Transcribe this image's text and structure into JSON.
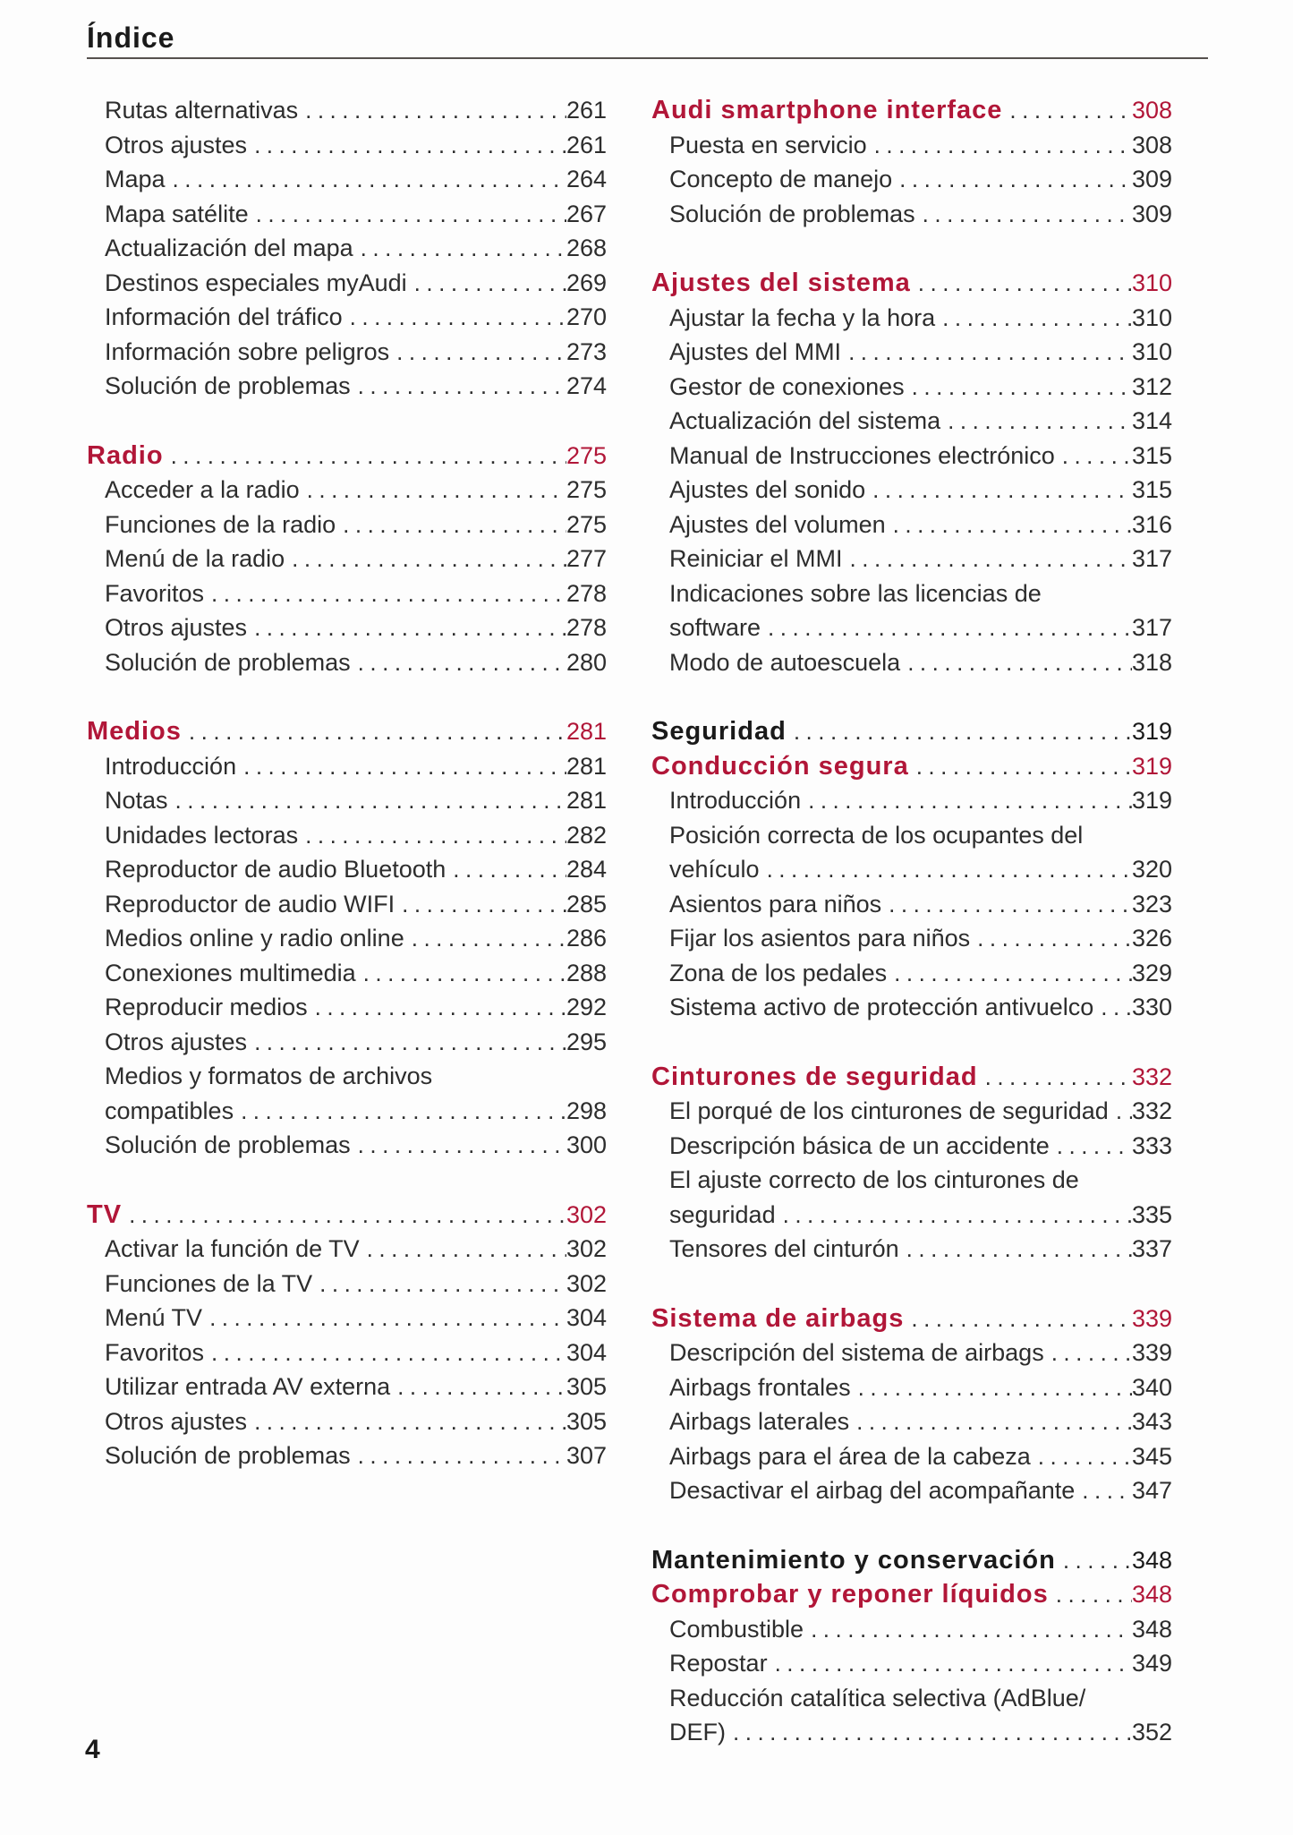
{
  "page": {
    "title": "Índice",
    "footer_page_number": "4"
  },
  "colors": {
    "accent": "#b11638",
    "text": "#2d2d2d",
    "heading": "#1a1a1a",
    "rule": "#56514e"
  },
  "toc": {
    "columns": [
      {
        "groups": [
          {
            "rows": [
              {
                "label": "Rutas alternativas",
                "page": "261",
                "style": "item"
              },
              {
                "label": "Otros ajustes",
                "page": "261",
                "style": "item"
              },
              {
                "label": "Mapa",
                "page": "264",
                "style": "item"
              },
              {
                "label": "Mapa satélite",
                "page": "267",
                "style": "item"
              },
              {
                "label": "Actualización del mapa",
                "page": "268",
                "style": "item"
              },
              {
                "label": "Destinos especiales myAudi",
                "page": "269",
                "style": "item"
              },
              {
                "label": "Información del tráfico",
                "page": "270",
                "style": "item"
              },
              {
                "label": "Información sobre peligros",
                "page": "273",
                "style": "item"
              },
              {
                "label": "Solución de problemas",
                "page": "274",
                "style": "item"
              }
            ]
          },
          {
            "rows": [
              {
                "label": "Radio",
                "page": "275",
                "style": "h-red"
              },
              {
                "label": "Acceder a la radio",
                "page": "275",
                "style": "item"
              },
              {
                "label": "Funciones de la radio",
                "page": "275",
                "style": "item"
              },
              {
                "label": "Menú de la radio",
                "page": "277",
                "style": "item"
              },
              {
                "label": "Favoritos",
                "page": "278",
                "style": "item"
              },
              {
                "label": "Otros ajustes",
                "page": "278",
                "style": "item"
              },
              {
                "label": "Solución de problemas",
                "page": "280",
                "style": "item"
              }
            ]
          },
          {
            "rows": [
              {
                "label": "Medios",
                "page": "281",
                "style": "h-red"
              },
              {
                "label": "Introducción",
                "page": "281",
                "style": "item"
              },
              {
                "label": "Notas",
                "page": "281",
                "style": "item"
              },
              {
                "label": "Unidades lectoras",
                "page": "282",
                "style": "item"
              },
              {
                "label": "Reproductor de audio Bluetooth",
                "page": "284",
                "style": "item"
              },
              {
                "label": "Reproductor de audio WIFI",
                "page": "285",
                "style": "item"
              },
              {
                "label": "Medios online y radio online",
                "page": "286",
                "style": "item"
              },
              {
                "label": "Conexiones multimedia",
                "page": "288",
                "style": "item"
              },
              {
                "label": "Reproducir medios",
                "page": "292",
                "style": "item"
              },
              {
                "label": "Otros ajustes",
                "page": "295",
                "style": "item"
              },
              {
                "label": "Medios y formatos de archivos",
                "page": "",
                "style": "cont"
              },
              {
                "label": "compatibles",
                "page": "298",
                "style": "item"
              },
              {
                "label": "Solución de problemas",
                "page": "300",
                "style": "item"
              }
            ]
          },
          {
            "rows": [
              {
                "label": "TV",
                "page": "302",
                "style": "h-red"
              },
              {
                "label": "Activar la función de TV",
                "page": "302",
                "style": "item"
              },
              {
                "label": "Funciones de la TV",
                "page": "302",
                "style": "item"
              },
              {
                "label": "Menú TV",
                "page": "304",
                "style": "item"
              },
              {
                "label": "Favoritos",
                "page": "304",
                "style": "item"
              },
              {
                "label": "Utilizar entrada AV externa",
                "page": "305",
                "style": "item"
              },
              {
                "label": "Otros ajustes",
                "page": "305",
                "style": "item"
              },
              {
                "label": "Solución de problemas",
                "page": "307",
                "style": "item"
              }
            ]
          }
        ]
      },
      {
        "groups": [
          {
            "rows": [
              {
                "label": "Audi smartphone interface",
                "page": "308",
                "style": "h-red"
              },
              {
                "label": "Puesta en servicio",
                "page": "308",
                "style": "item"
              },
              {
                "label": "Concepto de manejo",
                "page": "309",
                "style": "item"
              },
              {
                "label": "Solución de problemas",
                "page": "309",
                "style": "item"
              }
            ]
          },
          {
            "rows": [
              {
                "label": "Ajustes del sistema",
                "page": "310",
                "style": "h-red"
              },
              {
                "label": "Ajustar la fecha y la hora",
                "page": "310",
                "style": "item"
              },
              {
                "label": "Ajustes del MMI",
                "page": "310",
                "style": "item"
              },
              {
                "label": "Gestor de conexiones",
                "page": "312",
                "style": "item"
              },
              {
                "label": "Actualización del sistema",
                "page": "314",
                "style": "item"
              },
              {
                "label": "Manual de Instrucciones electrónico",
                "page": "315",
                "style": "item"
              },
              {
                "label": "Ajustes del sonido",
                "page": "315",
                "style": "item"
              },
              {
                "label": "Ajustes del volumen",
                "page": "316",
                "style": "item"
              },
              {
                "label": "Reiniciar el MMI",
                "page": "317",
                "style": "item"
              },
              {
                "label": "Indicaciones sobre las licencias de",
                "page": "",
                "style": "cont"
              },
              {
                "label": "software",
                "page": "317",
                "style": "item"
              },
              {
                "label": "Modo de autoescuela",
                "page": "318",
                "style": "item"
              }
            ]
          },
          {
            "rows": [
              {
                "label": "Seguridad",
                "page": "319",
                "style": "h-black"
              },
              {
                "label": "Conducción segura",
                "page": "319",
                "style": "h-red"
              },
              {
                "label": "Introducción",
                "page": "319",
                "style": "item"
              },
              {
                "label": "Posición correcta de los ocupantes del",
                "page": "",
                "style": "cont"
              },
              {
                "label": "vehículo",
                "page": "320",
                "style": "item"
              },
              {
                "label": "Asientos para niños",
                "page": "323",
                "style": "item"
              },
              {
                "label": "Fijar los asientos para niños",
                "page": "326",
                "style": "item"
              },
              {
                "label": "Zona de los pedales",
                "page": "329",
                "style": "item"
              },
              {
                "label": "Sistema activo de protección antivuelco",
                "page": "330",
                "style": "item"
              }
            ]
          },
          {
            "rows": [
              {
                "label": "Cinturones de seguridad",
                "page": "332",
                "style": "h-red"
              },
              {
                "label": "El porqué de los cinturones de seguridad",
                "page": "332",
                "style": "item"
              },
              {
                "label": "Descripción básica de un accidente",
                "page": "333",
                "style": "item"
              },
              {
                "label": "El ajuste correcto de los cinturones de",
                "page": "",
                "style": "cont"
              },
              {
                "label": "seguridad",
                "page": "335",
                "style": "item"
              },
              {
                "label": "Tensores del cinturón",
                "page": "337",
                "style": "item"
              }
            ]
          },
          {
            "rows": [
              {
                "label": "Sistema de airbags",
                "page": "339",
                "style": "h-red"
              },
              {
                "label": "Descripción del sistema de airbags",
                "page": "339",
                "style": "item"
              },
              {
                "label": "Airbags frontales",
                "page": "340",
                "style": "item"
              },
              {
                "label": "Airbags laterales",
                "page": "343",
                "style": "item"
              },
              {
                "label": "Airbags para el área de la cabeza",
                "page": "345",
                "style": "item"
              },
              {
                "label": "Desactivar el airbag del acompañante",
                "page": "347",
                "style": "item"
              }
            ]
          },
          {
            "rows": [
              {
                "label": "Mantenimiento y conservación",
                "page": "348",
                "style": "h-black"
              },
              {
                "label": "Comprobar y reponer líquidos",
                "page": "348",
                "style": "h-red"
              },
              {
                "label": "Combustible",
                "page": "348",
                "style": "item"
              },
              {
                "label": "Repostar",
                "page": "349",
                "style": "item"
              },
              {
                "label": "Reducción catalítica selectiva (AdBlue/",
                "page": "",
                "style": "cont"
              },
              {
                "label": "DEF)",
                "page": "352",
                "style": "item"
              }
            ]
          }
        ]
      }
    ]
  }
}
